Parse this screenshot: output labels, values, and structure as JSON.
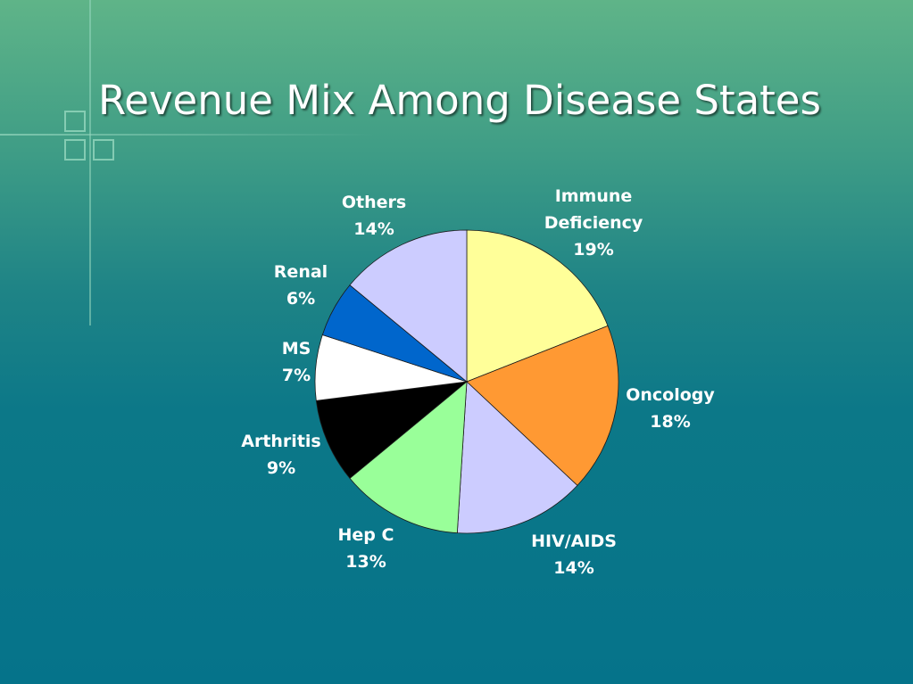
{
  "slide": {
    "title": "Revenue Mix Among Disease States"
  },
  "chart_data": {
    "type": "pie",
    "title": "",
    "start": "12 o'clock",
    "direction": "clockwise",
    "slices": [
      {
        "label": [
          "Immune",
          "Deficiency"
        ],
        "value": 19,
        "display": "19%",
        "color": "#ffff99"
      },
      {
        "label": [
          "Oncology"
        ],
        "value": 18,
        "display": "18%",
        "color": "#ff9933"
      },
      {
        "label": [
          "HIV/AIDS"
        ],
        "value": 14,
        "display": "14%",
        "color": "#ccccff"
      },
      {
        "label": [
          "Hep C"
        ],
        "value": 13,
        "display": "13%",
        "color": "#99ff99"
      },
      {
        "label": [
          "Arthritis"
        ],
        "value": 9,
        "display": "9%",
        "color": "#000000"
      },
      {
        "label": [
          "MS"
        ],
        "value": 7,
        "display": "7%",
        "color": "#ffffff"
      },
      {
        "label": [
          "Renal"
        ],
        "value": 6,
        "display": "6%",
        "color": "#0066cc"
      },
      {
        "label": [
          "Others"
        ],
        "value": 14,
        "display": "14%",
        "color": "#ccccff"
      }
    ]
  }
}
